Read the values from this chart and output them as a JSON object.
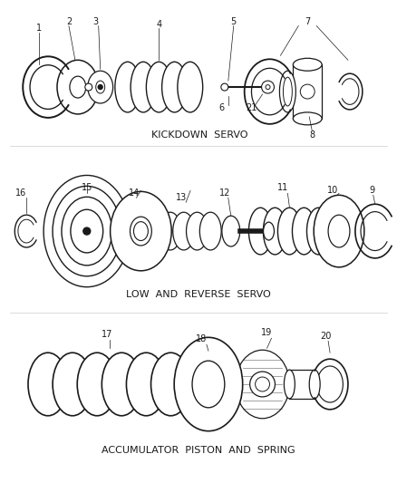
{
  "background_color": "#ffffff",
  "line_color": "#1a1a1a",
  "section_labels": {
    "kickdown": "KICKDOWN  SERVO",
    "low_reverse": "LOW  AND  REVERSE  SERVO",
    "accumulator": "ACCUMULATOR  PISTON  AND  SPRING"
  },
  "label_fontsize": 7.0,
  "section_label_fontsize": 8.0
}
